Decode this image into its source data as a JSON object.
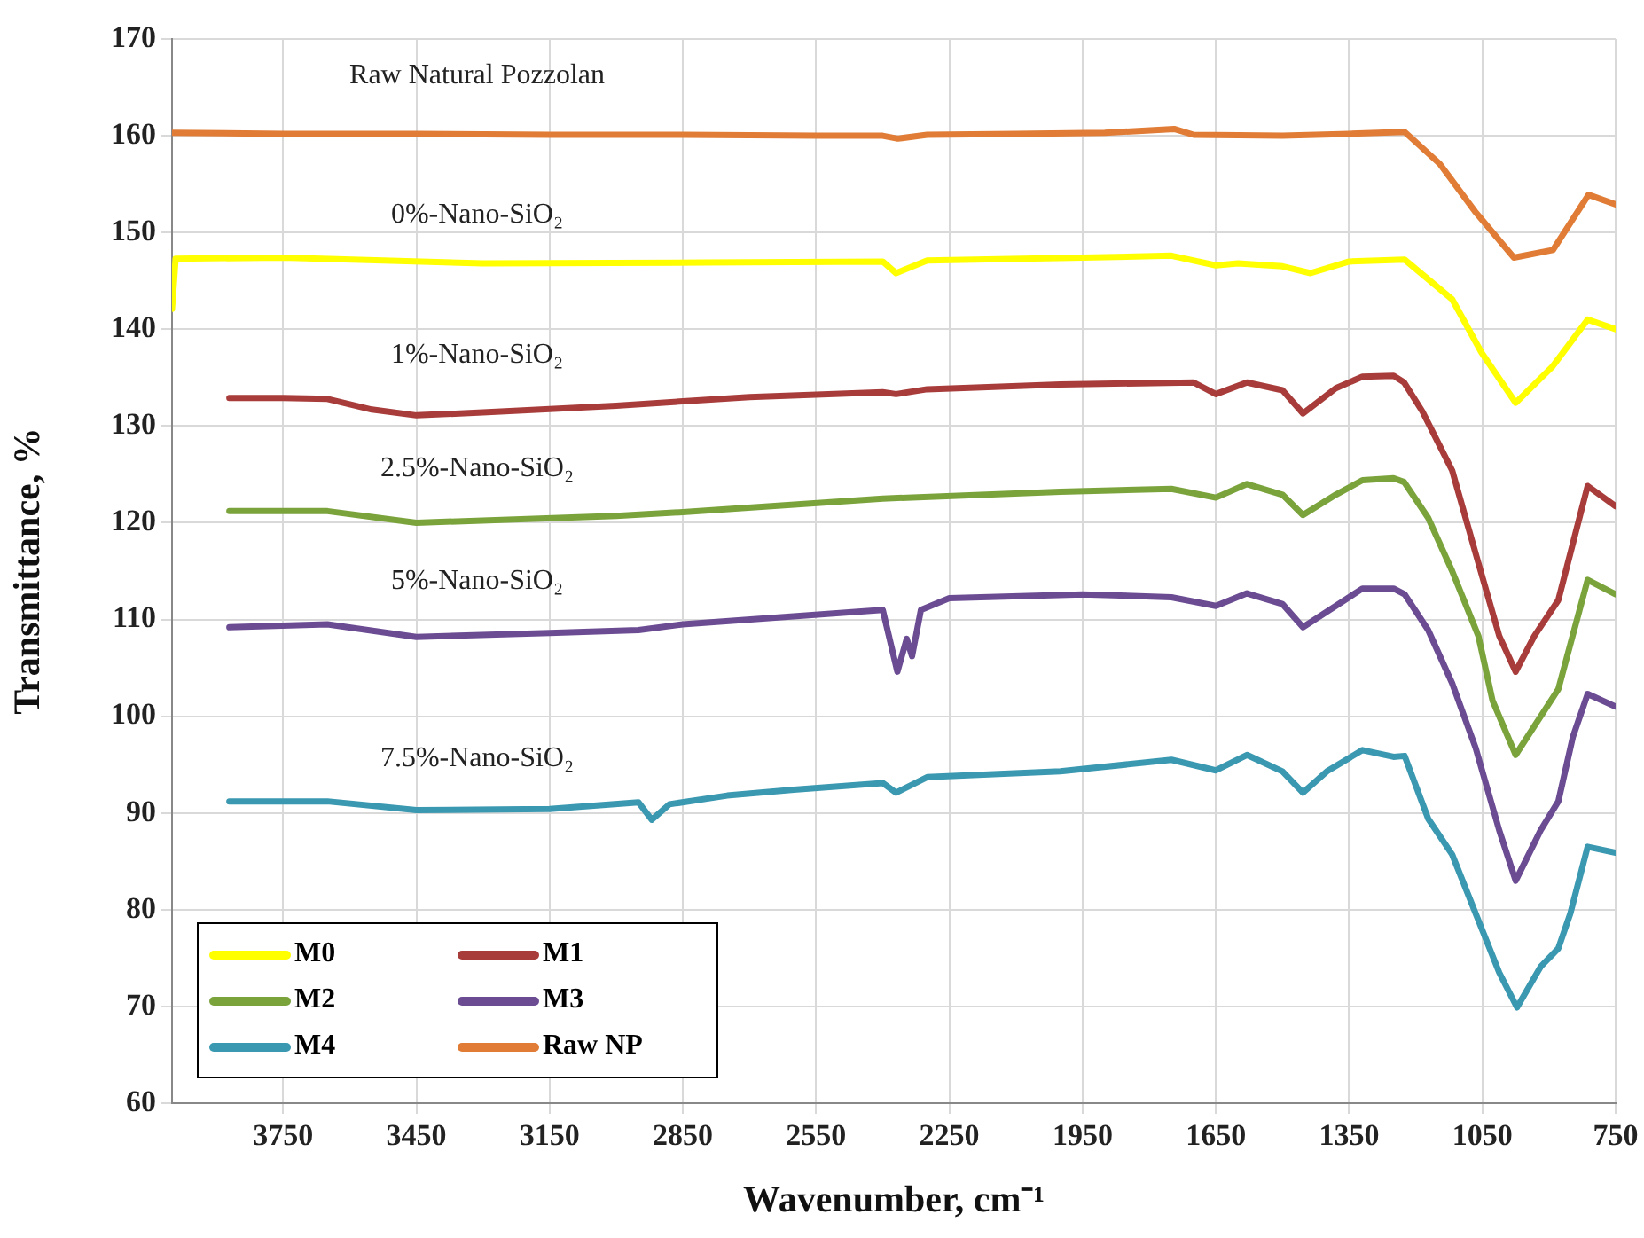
{
  "chart_data": {
    "type": "line",
    "xlabel": "Wavenumber, cm⁻¹",
    "ylabel": "Transmittance, %",
    "xlim": [
      4000,
      750
    ],
    "xticks": [
      3750,
      3450,
      3150,
      2850,
      2550,
      2250,
      1950,
      1650,
      1350,
      1050,
      750
    ],
    "ylim": [
      60,
      170
    ],
    "yticks": [
      60,
      70,
      80,
      90,
      100,
      110,
      120,
      130,
      140,
      150,
      160,
      170
    ],
    "grid": true,
    "legend": "bottom left",
    "line_style": "solid",
    "annotations": [
      "0%-Nano-SiO₂",
      "1%-Nano-SiO₂",
      "2.5%-Nano-SiO₂",
      "5%-Nano-SiO₂",
      "7.5%-Nano-SiO₂",
      "Raw Natural Pozzolan"
    ],
    "series": [
      {
        "name": "M0",
        "color": "#ffff00",
        "x": [
          4000,
          3992,
          3750,
          3300,
          2800,
          2400,
          2370,
          2300,
          1950,
          1750,
          1650,
          1600,
          1500,
          1437,
          1350,
          1225,
          1118,
          1052,
          975,
          893,
          813,
          750
        ],
        "values": [
          142.1,
          147.3,
          147.4,
          146.8,
          146.9,
          147.0,
          145.8,
          147.1,
          147.4,
          147.6,
          146.6,
          146.8,
          146.5,
          145.8,
          147.0,
          147.2,
          143.1,
          137.6,
          132.4,
          136.1,
          141.0,
          140.0
        ]
      },
      {
        "name": "M1",
        "color": "#a83c3a",
        "x": [
          3871,
          3750,
          3650,
          3550,
          3450,
          3300,
          3000,
          2700,
          2400,
          2370,
          2300,
          2000,
          1700,
          1650,
          1580,
          1500,
          1454,
          1380,
          1320,
          1250,
          1226,
          1185,
          1118,
          1065,
          1012,
          975,
          933,
          879,
          813,
          750
        ],
        "values": [
          132.9,
          132.9,
          132.8,
          131.7,
          131.1,
          131.4,
          132.1,
          133.0,
          133.5,
          133.3,
          133.8,
          134.3,
          134.5,
          133.3,
          134.5,
          133.7,
          131.3,
          133.9,
          135.1,
          135.2,
          134.5,
          131.5,
          125.4,
          116.8,
          108.3,
          104.6,
          108.3,
          112.0,
          123.8,
          121.7
        ]
      },
      {
        "name": "M2",
        "color": "#7ba33c",
        "x": [
          3871,
          3650,
          3450,
          3000,
          2850,
          2400,
          2000,
          1750,
          1650,
          1580,
          1500,
          1454,
          1380,
          1320,
          1250,
          1226,
          1172,
          1118,
          1059,
          1027,
          975,
          879,
          813,
          750
        ],
        "values": [
          121.2,
          121.2,
          120.0,
          120.7,
          121.1,
          122.5,
          123.2,
          123.5,
          122.6,
          124.0,
          122.9,
          120.8,
          122.9,
          124.4,
          124.6,
          124.2,
          120.5,
          115.0,
          108.3,
          101.6,
          96.0,
          102.8,
          114.1,
          112.6
        ]
      },
      {
        "name": "M3",
        "color": "#6b4c93",
        "x": [
          3871,
          3650,
          3450,
          3150,
          2950,
          2850,
          2400,
          2367,
          2346,
          2334,
          2314,
          2250,
          1950,
          1750,
          1650,
          1580,
          1500,
          1454,
          1380,
          1320,
          1250,
          1225,
          1172,
          1118,
          1065,
          1012,
          975,
          919,
          879,
          846,
          813,
          750
        ],
        "values": [
          109.2,
          109.5,
          108.2,
          108.6,
          108.9,
          109.5,
          111.0,
          104.6,
          108.0,
          106.2,
          111.0,
          112.2,
          112.6,
          112.3,
          111.4,
          112.7,
          111.6,
          109.2,
          111.4,
          113.2,
          113.2,
          112.6,
          108.9,
          103.4,
          96.7,
          88.2,
          83.0,
          88.2,
          91.2,
          97.9,
          102.3,
          101.0
        ]
      },
      {
        "name": "M4",
        "color": "#3a98b0",
        "x": [
          3871,
          3650,
          3450,
          3150,
          2950,
          2920,
          2880,
          2750,
          2600,
          2400,
          2370,
          2300,
          2000,
          1750,
          1650,
          1580,
          1500,
          1454,
          1400,
          1320,
          1250,
          1225,
          1172,
          1118,
          1065,
          1012,
          972,
          919,
          879,
          852,
          813,
          750
        ],
        "values": [
          91.2,
          91.2,
          90.3,
          90.4,
          91.1,
          89.3,
          90.9,
          91.8,
          92.4,
          93.1,
          92.1,
          93.7,
          94.3,
          95.5,
          94.4,
          96.0,
          94.3,
          92.1,
          94.3,
          96.5,
          95.8,
          95.9,
          89.4,
          85.7,
          79.6,
          73.5,
          69.9,
          74.1,
          76.0,
          79.6,
          86.5,
          85.9
        ]
      },
      {
        "name": "Raw NP",
        "color": "#e07c35",
        "x": [
          4000,
          3750,
          3450,
          3150,
          2850,
          2550,
          2400,
          2366,
          2300,
          2100,
          1900,
          1744,
          1700,
          1500,
          1350,
          1225,
          1146,
          1067,
          979,
          891,
          811,
          750
        ],
        "values": [
          160.3,
          160.2,
          160.2,
          160.1,
          160.1,
          160.0,
          160.0,
          159.7,
          160.1,
          160.2,
          160.3,
          160.7,
          160.1,
          160.0,
          160.2,
          160.4,
          157.1,
          152.2,
          147.4,
          148.2,
          153.9,
          152.9
        ]
      }
    ]
  }
}
